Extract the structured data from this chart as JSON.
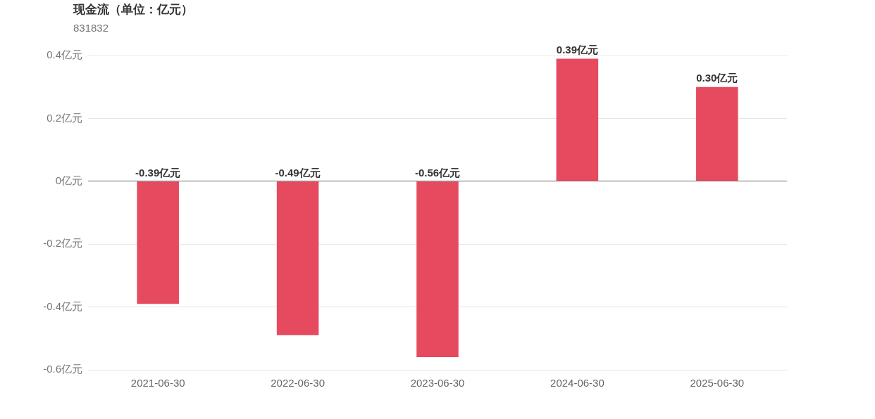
{
  "chart_data": {
    "type": "bar",
    "title": "现金流（单位：亿元）",
    "subtitle": "831832",
    "categories": [
      "2021-06-30",
      "2022-06-30",
      "2023-06-30",
      "2024-06-30",
      "2025-06-30"
    ],
    "series": [
      {
        "color": "#e64a5e",
        "values": [
          -0.39,
          -0.49,
          -0.56,
          0.39,
          0.3
        ],
        "value_labels": [
          "-0.39亿元",
          "-0.49亿元",
          "-0.56亿元",
          "0.39亿元",
          "0.30亿元"
        ]
      }
    ],
    "ylim": [
      -0.6,
      0.4
    ],
    "yticks": [
      {
        "value": -0.6,
        "label": "-0.6亿元"
      },
      {
        "value": -0.4,
        "label": "-0.4亿元"
      },
      {
        "value": -0.2,
        "label": "-0.2亿元"
      },
      {
        "value": 0,
        "label": "0亿元"
      },
      {
        "value": 0.2,
        "label": "0.2亿元"
      },
      {
        "value": 0.4,
        "label": "0.4亿元"
      }
    ],
    "grid": "y",
    "legend": false
  }
}
